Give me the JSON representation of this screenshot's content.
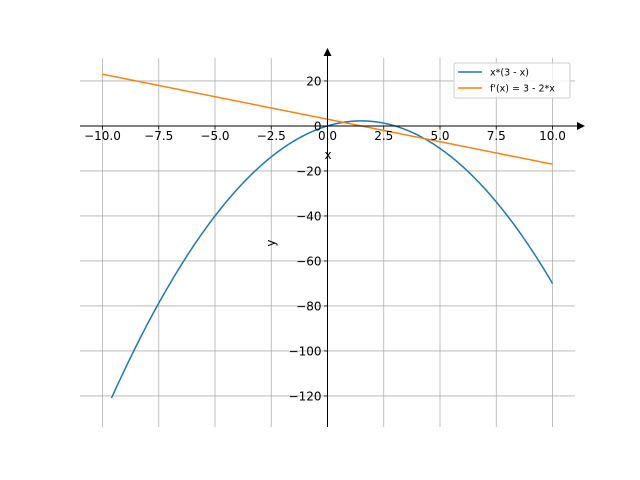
{
  "chart_data": {
    "type": "line",
    "title": "",
    "xlabel": "x",
    "ylabel": "y",
    "xlim": [
      -11,
      11
    ],
    "ylim": [
      -133.8,
      30.2
    ],
    "xticks": [
      -10,
      -7.5,
      -5,
      -2.5,
      0,
      2.5,
      5,
      7.5,
      10
    ],
    "xtick_labels": [
      "−10.0",
      "−7.5",
      "−5.0",
      "−2.5",
      "0.0",
      "2.5",
      "5.0",
      "7.5",
      "10.0"
    ],
    "yticks": [
      20,
      0,
      -20,
      -40,
      -60,
      -80,
      -100,
      -120
    ],
    "ytick_labels": [
      "20",
      "0",
      "−20",
      "−40",
      "−60",
      "−80",
      "−100",
      "−120"
    ],
    "grid": true,
    "legend_position": "top-right",
    "series": [
      {
        "name": "x*(3 - x)",
        "expression": "x*(3-x)",
        "x_range": [
          -9.6,
          10
        ],
        "color": "#1f77b4"
      },
      {
        "name": "f'(x) = 3 - 2*x",
        "expression": "3-2*x",
        "x_range": [
          -10,
          10
        ],
        "color": "#ff7f0e"
      }
    ]
  }
}
